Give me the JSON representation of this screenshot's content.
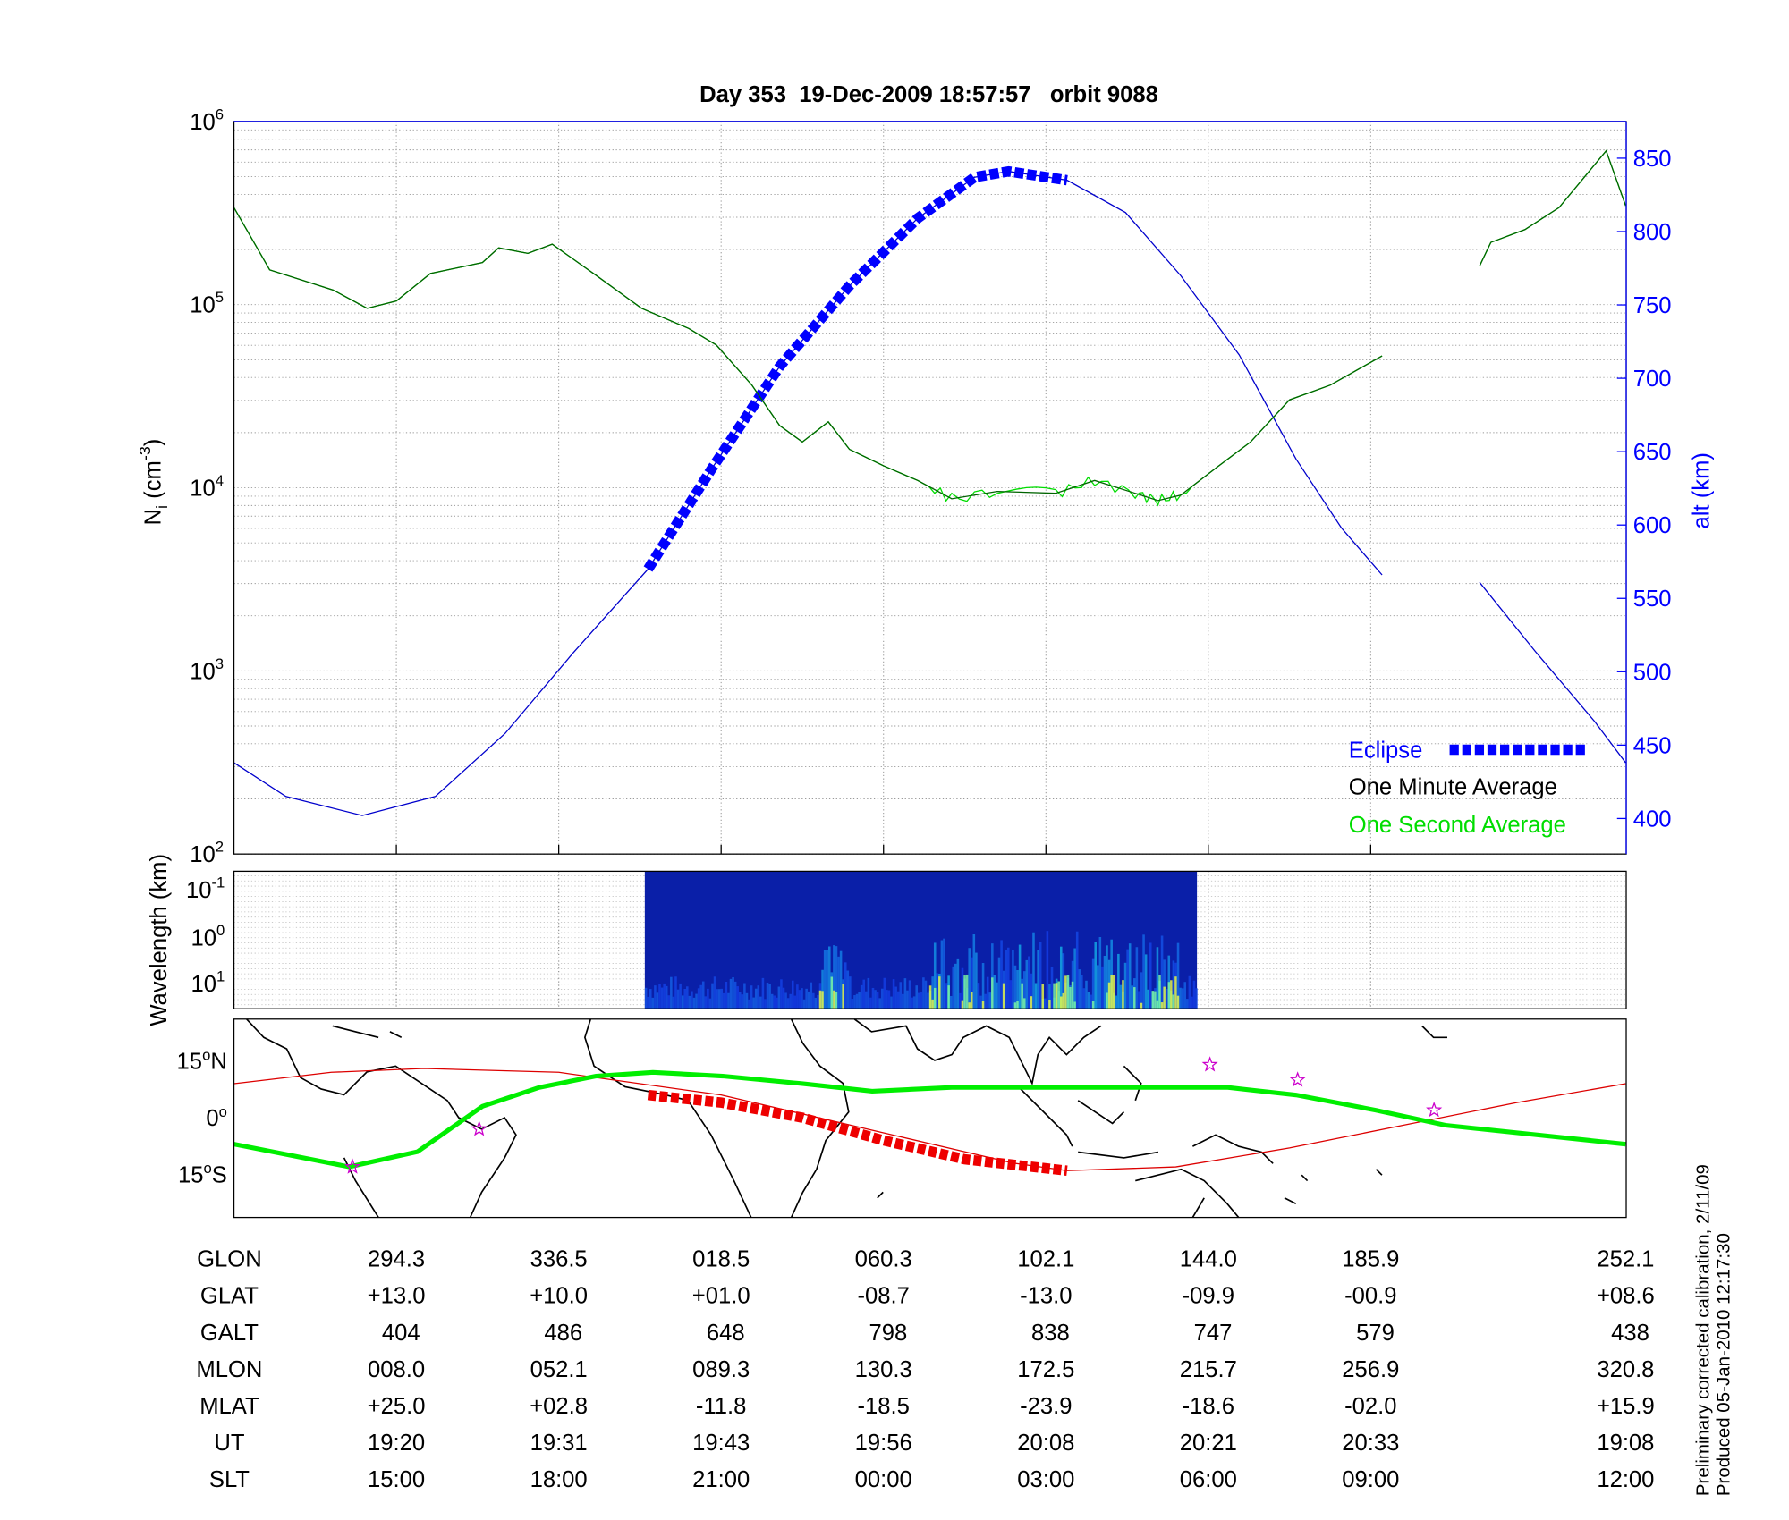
{
  "chart_data": [
    {
      "type": "line",
      "title": "Day 353  19-Dec-2009 18:57:57   orbit 9088",
      "ylabel": {
        "main": "N",
        "sub": "i",
        "mid": " (cm",
        "sup": "-3",
        "end": ")"
      },
      "y2label": "alt (km)",
      "yscale": "log",
      "ylim": [
        100,
        1000000
      ],
      "yticks": [
        {
          "base": "10",
          "exp": "2",
          "v": 2
        },
        {
          "base": "10",
          "exp": "3",
          "v": 3
        },
        {
          "base": "10",
          "exp": "4",
          "v": 4
        },
        {
          "base": "10",
          "exp": "5",
          "v": 5
        },
        {
          "base": "10",
          "exp": "6",
          "v": 6
        }
      ],
      "y2lim": [
        375,
        875
      ],
      "y2ticks": [
        "400",
        "450",
        "500",
        "550",
        "600",
        "650",
        "700",
        "750",
        "800",
        "850"
      ],
      "xlim_tick_units": [
        0,
        8.57
      ],
      "grid": true,
      "legend": {
        "placement": "bottom-right",
        "items": [
          "Eclipse",
          "One Minute Average",
          "One Second Average"
        ]
      },
      "colors": {
        "density_minute": "#006400",
        "density_second": "#00dd00",
        "altitude": "#0000cc",
        "eclipse": "#0000ff"
      },
      "density_log10": [
        [
          [
            0,
            5.53
          ],
          [
            0.22,
            5.19
          ],
          [
            0.61,
            5.08
          ],
          [
            0.82,
            4.98
          ],
          [
            1.0,
            5.02
          ],
          [
            1.21,
            5.17
          ],
          [
            1.53,
            5.23
          ],
          [
            1.63,
            5.31
          ],
          [
            1.81,
            5.28
          ],
          [
            1.96,
            5.33
          ],
          [
            2.23,
            5.16
          ],
          [
            2.51,
            4.98
          ],
          [
            2.8,
            4.87
          ],
          [
            2.97,
            4.78
          ],
          [
            3.19,
            4.56
          ],
          [
            3.36,
            4.34
          ],
          [
            3.5,
            4.25
          ],
          [
            3.66,
            4.36
          ],
          [
            3.79,
            4.21
          ],
          [
            4.0,
            4.12
          ],
          [
            4.21,
            4.04
          ],
          [
            4.42,
            3.94
          ],
          [
            4.7,
            3.98
          ],
          [
            5.06,
            3.97
          ],
          [
            5.3,
            4.04
          ],
          [
            5.55,
            3.97
          ],
          [
            5.69,
            3.93
          ],
          [
            5.83,
            3.96
          ],
          [
            6.05,
            4.11
          ],
          [
            6.26,
            4.25
          ],
          [
            6.5,
            4.48
          ],
          [
            6.75,
            4.56
          ],
          [
            7.07,
            4.72
          ]
        ],
        [
          [
            7.67,
            5.21
          ],
          [
            7.74,
            5.34
          ],
          [
            7.95,
            5.41
          ],
          [
            8.16,
            5.53
          ],
          [
            8.45,
            5.84
          ],
          [
            8.57,
            5.54
          ]
        ]
      ],
      "altitude_km": [
        [
          [
            0,
            438
          ],
          [
            0.32,
            415
          ],
          [
            0.79,
            402
          ],
          [
            1.24,
            415
          ],
          [
            1.67,
            458
          ],
          [
            2.09,
            513
          ],
          [
            2.55,
            570
          ],
          [
            2.94,
            638
          ],
          [
            3.36,
            708
          ],
          [
            3.79,
            763
          ],
          [
            4.21,
            809
          ],
          [
            4.56,
            837
          ],
          [
            4.77,
            841
          ],
          [
            5.13,
            835
          ],
          [
            5.49,
            813
          ],
          [
            5.83,
            770
          ],
          [
            6.19,
            716
          ],
          [
            6.54,
            645
          ],
          [
            6.82,
            598
          ],
          [
            7.07,
            566
          ]
        ],
        [
          [
            7.67,
            561
          ],
          [
            8.02,
            513
          ],
          [
            8.38,
            466
          ],
          [
            8.57,
            438
          ]
        ]
      ],
      "eclipse_range_tick_units": [
        2.55,
        5.13
      ]
    },
    {
      "type": "heatmap",
      "ylabel": "Wavelength (km)",
      "yticks": [
        {
          "base": "10",
          "exp": "-1"
        },
        {
          "base": "10",
          "exp": "0"
        },
        {
          "base": "10",
          "exp": "1"
        }
      ],
      "data_range_tick_units": [
        2.53,
        5.93
      ]
    },
    {
      "type": "line",
      "yticks": [
        {
          "deg": "15",
          "o": "o",
          "hem": "N",
          "v": 15
        },
        {
          "deg": "0",
          "o": "o",
          "hem": "",
          "v": 0
        },
        {
          "deg": "15",
          "o": "o",
          "hem": "S",
          "v": -15
        }
      ],
      "ground_track_lat": [
        [
          0,
          -7
        ],
        [
          0.71,
          -13
        ],
        [
          1.13,
          -9
        ],
        [
          1.53,
          3
        ],
        [
          1.88,
          8
        ],
        [
          2.23,
          11
        ],
        [
          2.58,
          12
        ],
        [
          3.01,
          11
        ],
        [
          3.5,
          9
        ],
        [
          3.93,
          7
        ],
        [
          4.42,
          8
        ],
        [
          4.92,
          8
        ],
        [
          5.62,
          8
        ],
        [
          6.12,
          8
        ],
        [
          6.54,
          6
        ],
        [
          7.03,
          2
        ],
        [
          7.46,
          -2
        ],
        [
          8.57,
          -7
        ]
      ],
      "eclipse_track_lat": [
        [
          2.55,
          6
        ],
        [
          3.0,
          4
        ],
        [
          3.5,
          0
        ],
        [
          4.0,
          -6
        ],
        [
          4.5,
          -11
        ],
        [
          5.13,
          -14
        ]
      ],
      "magnetic_equator_lat": [
        [
          0,
          9
        ],
        [
          0.6,
          12
        ],
        [
          1.17,
          13
        ],
        [
          2.0,
          12
        ],
        [
          3.0,
          6
        ],
        [
          4.0,
          -4
        ],
        [
          4.8,
          -12
        ],
        [
          5.13,
          -14
        ],
        [
          5.8,
          -13
        ],
        [
          6.5,
          -8
        ],
        [
          7.2,
          -2
        ],
        [
          7.9,
          4
        ],
        [
          8.57,
          9
        ]
      ],
      "stations": [
        [
          0.73,
          -13
        ],
        [
          1.51,
          -3
        ],
        [
          6.01,
          14
        ],
        [
          6.55,
          10
        ],
        [
          7.39,
          2
        ]
      ]
    }
  ],
  "table": {
    "columns_tick_units": [
      1,
      2,
      3,
      4,
      5,
      6,
      7,
      8.57
    ],
    "rows": [
      {
        "label": "GLON",
        "values": [
          "294.3",
          "336.5",
          "018.5",
          "060.3",
          "102.1",
          "144.0",
          "185.9",
          "252.1"
        ]
      },
      {
        "label": "GLAT",
        "values": [
          "+13.0",
          "+10.0",
          "+01.0",
          "-08.7",
          "-13.0",
          "-09.9",
          "-00.9",
          "+08.6"
        ]
      },
      {
        "label": "GALT",
        "values": [
          "404",
          "486",
          "648",
          "798",
          "838",
          "747",
          "579",
          "438"
        ]
      },
      {
        "label": "MLON",
        "values": [
          "008.0",
          "052.1",
          "089.3",
          "130.3",
          "172.5",
          "215.7",
          "256.9",
          "320.8"
        ]
      },
      {
        "label": "MLAT",
        "values": [
          "+25.0",
          "+02.8",
          "-11.8",
          "-18.5",
          "-23.9",
          "-18.6",
          "-02.0",
          "+15.9"
        ]
      },
      {
        "label": "UT",
        "values": [
          "19:20",
          "19:31",
          "19:43",
          "19:56",
          "20:08",
          "20:21",
          "20:33",
          "19:08"
        ]
      },
      {
        "label": "SLT",
        "values": [
          "15:00",
          "18:00",
          "21:00",
          "00:00",
          "03:00",
          "06:00",
          "09:00",
          "12:00"
        ]
      }
    ]
  },
  "footer": {
    "line1": "Preliminary corrected calibration, 2/11/09",
    "line2": "Produced 05-Jan-2010 12:17:30"
  }
}
